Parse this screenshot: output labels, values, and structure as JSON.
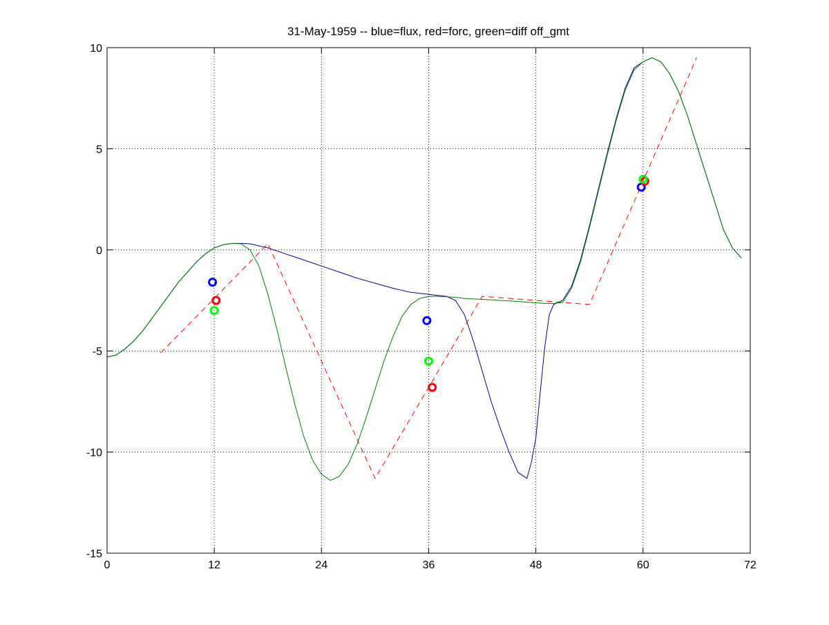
{
  "chart_data": {
    "type": "line",
    "title": "31-May-1959 -- blue=flux, red=forc, green=diff off_gmt",
    "xlabel": "",
    "ylabel": "",
    "xlim": [
      0,
      72
    ],
    "ylim": [
      -15,
      10
    ],
    "xticks": [
      0,
      12,
      24,
      36,
      48,
      60,
      72
    ],
    "yticks": [
      10,
      5,
      0,
      -5,
      -10,
      -15
    ],
    "grid": true,
    "grid_style": "dotted",
    "legend": "none",
    "series": [
      {
        "color": "#00008b",
        "style": "solid",
        "x": [
          0,
          1,
          2,
          3,
          4,
          5,
          6,
          7,
          8,
          9,
          10,
          11,
          12,
          13,
          14,
          15,
          16,
          18,
          20,
          22,
          24,
          26,
          28,
          30,
          32,
          34,
          36,
          37,
          38,
          39,
          40,
          41,
          42,
          43,
          44,
          45,
          46,
          47,
          47.5,
          48,
          48.5,
          49,
          49.5,
          50,
          51,
          52,
          53,
          54,
          55,
          56,
          57,
          58,
          59,
          60,
          61,
          62,
          63,
          64,
          65,
          66,
          67,
          68,
          69,
          70,
          71
        ],
        "y": [
          -5.3,
          -5.2,
          -4.9,
          -4.5,
          -4.0,
          -3.4,
          -2.8,
          -2.2,
          -1.6,
          -1.1,
          -0.6,
          -0.2,
          0.1,
          0.25,
          0.32,
          0.32,
          0.3,
          0.1,
          -0.2,
          -0.5,
          -0.8,
          -1.1,
          -1.4,
          -1.65,
          -1.9,
          -2.1,
          -2.2,
          -2.25,
          -2.3,
          -2.5,
          -3.2,
          -4.5,
          -6.0,
          -7.5,
          -8.8,
          -10.0,
          -11.0,
          -11.3,
          -10.5,
          -9.3,
          -7.0,
          -4.8,
          -3.2,
          -2.7,
          -2.5,
          -1.8,
          -0.5,
          1.2,
          3.0,
          4.8,
          6.5,
          8.0,
          9.0,
          9.3,
          9.5,
          9.3,
          8.7,
          7.8,
          6.6,
          5.2,
          3.8,
          2.4,
          1.0,
          0.1,
          -0.4
        ],
        "markers": [
          {
            "x": 11.8,
            "y": -1.6
          },
          {
            "x": 35.8,
            "y": -3.5
          },
          {
            "x": 59.8,
            "y": 3.1
          }
        ]
      },
      {
        "color": "#ff0000",
        "style": "dashed",
        "x": [
          6,
          18,
          30,
          42,
          54,
          66
        ],
        "y": [
          -5.1,
          0.3,
          -11.3,
          -2.3,
          -2.7,
          9.5
        ],
        "markers": [
          {
            "x": 12.2,
            "y": -2.5
          },
          {
            "x": 36.4,
            "y": -6.8
          },
          {
            "x": 60.2,
            "y": 3.4
          }
        ]
      },
      {
        "color": "#007f00",
        "style": "solid",
        "x": [
          0,
          1,
          2,
          3,
          4,
          5,
          6,
          7,
          8,
          9,
          10,
          11,
          12,
          13,
          14,
          15,
          16,
          17,
          18,
          19,
          20,
          21,
          22,
          23,
          24,
          25,
          26,
          27,
          28,
          29,
          30,
          31,
          32,
          33,
          34,
          35,
          36,
          37,
          38,
          39,
          40,
          42,
          44,
          46,
          48,
          49,
          50,
          51,
          52,
          53,
          54,
          55,
          56,
          57,
          58,
          59,
          60,
          61,
          62,
          63,
          64,
          65,
          66,
          67,
          68,
          69,
          70,
          71
        ],
        "y": [
          -5.3,
          -5.2,
          -4.9,
          -4.5,
          -4.0,
          -3.4,
          -2.8,
          -2.2,
          -1.6,
          -1.1,
          -0.6,
          -0.2,
          0.1,
          0.25,
          0.32,
          0.3,
          0.0,
          -0.8,
          -2.2,
          -3.9,
          -5.8,
          -7.6,
          -9.2,
          -10.4,
          -11.1,
          -11.4,
          -11.2,
          -10.6,
          -9.6,
          -8.3,
          -6.9,
          -5.5,
          -4.3,
          -3.3,
          -2.7,
          -2.4,
          -2.3,
          -2.3,
          -2.32,
          -2.35,
          -2.4,
          -2.45,
          -2.5,
          -2.55,
          -2.62,
          -2.65,
          -2.65,
          -2.6,
          -1.9,
          -0.6,
          1.1,
          2.9,
          4.7,
          6.4,
          7.9,
          8.9,
          9.3,
          9.5,
          9.3,
          8.7,
          7.8,
          6.6,
          5.2,
          3.8,
          2.4,
          1.0,
          0.1,
          -0.4
        ],
        "markers": [
          {
            "x": 12.0,
            "y": -3.0
          },
          {
            "x": 36.0,
            "y": -5.5
          },
          {
            "x": 60.0,
            "y": 3.5
          }
        ]
      }
    ]
  }
}
